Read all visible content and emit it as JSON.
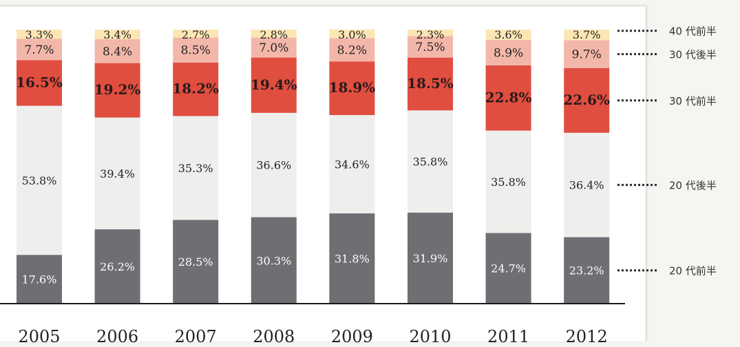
{
  "chart_data": {
    "type": "bar",
    "stacked": true,
    "percent": true,
    "categories": [
      "2005",
      "2006",
      "2007",
      "2008",
      "2009",
      "2010",
      "2011",
      "2012"
    ],
    "series": [
      {
        "name": "20 代前半",
        "color": "#6e6e73",
        "label_color": "#ffffff",
        "values": [
          17.6,
          26.2,
          28.5,
          30.3,
          31.8,
          31.9,
          24.7,
          23.2
        ],
        "labels": [
          "17.6%",
          "26.2%",
          "28.5%",
          "30.3%",
          "31.8%",
          "31.9%",
          "24.7%",
          "23.2%"
        ]
      },
      {
        "name": "20 代後半",
        "color": "#eeefec",
        "label_color": "#222222",
        "values": [
          53.8,
          39.4,
          35.3,
          36.6,
          34.6,
          35.8,
          35.8,
          36.4
        ],
        "labels": [
          "53.8%",
          "39.4%",
          "35.3%",
          "36.6%",
          "34.6%",
          "35.8%",
          "35.8%",
          "36.4%"
        ]
      },
      {
        "name": "30 代前半",
        "color": "#e04e40",
        "label_color": "#2a1a1a",
        "values": [
          16.5,
          19.2,
          18.2,
          19.4,
          18.9,
          18.5,
          22.8,
          22.6
        ],
        "labels": [
          "16.5%",
          "19.2%",
          "18.2%",
          "19.4%",
          "18.9%",
          "18.5%",
          "22.8%",
          "22.6%"
        ]
      },
      {
        "name": "30 代後半",
        "color": "#f3b7aa",
        "label_color": "#222222",
        "values": [
          7.7,
          8.4,
          8.5,
          7.0,
          8.2,
          7.5,
          8.9,
          9.7
        ],
        "labels": [
          "7.7%",
          "8.4%",
          "8.5%",
          "7.0%",
          "8.2%",
          "7.5%",
          "8.9%",
          "9.7%"
        ]
      },
      {
        "name": "40 代前半",
        "color": "#fbe6b4",
        "label_color": "#222222",
        "values": [
          3.3,
          3.4,
          2.7,
          2.8,
          3.0,
          2.3,
          3.6,
          3.7
        ],
        "labels": [
          "3.3%",
          "3.4%",
          "2.7%",
          "2.8%",
          "3.0%",
          "2.3%",
          "3.6%",
          "3.7%"
        ]
      }
    ],
    "legend_placement": "right",
    "axis_line_color": "#1a1a1a"
  }
}
